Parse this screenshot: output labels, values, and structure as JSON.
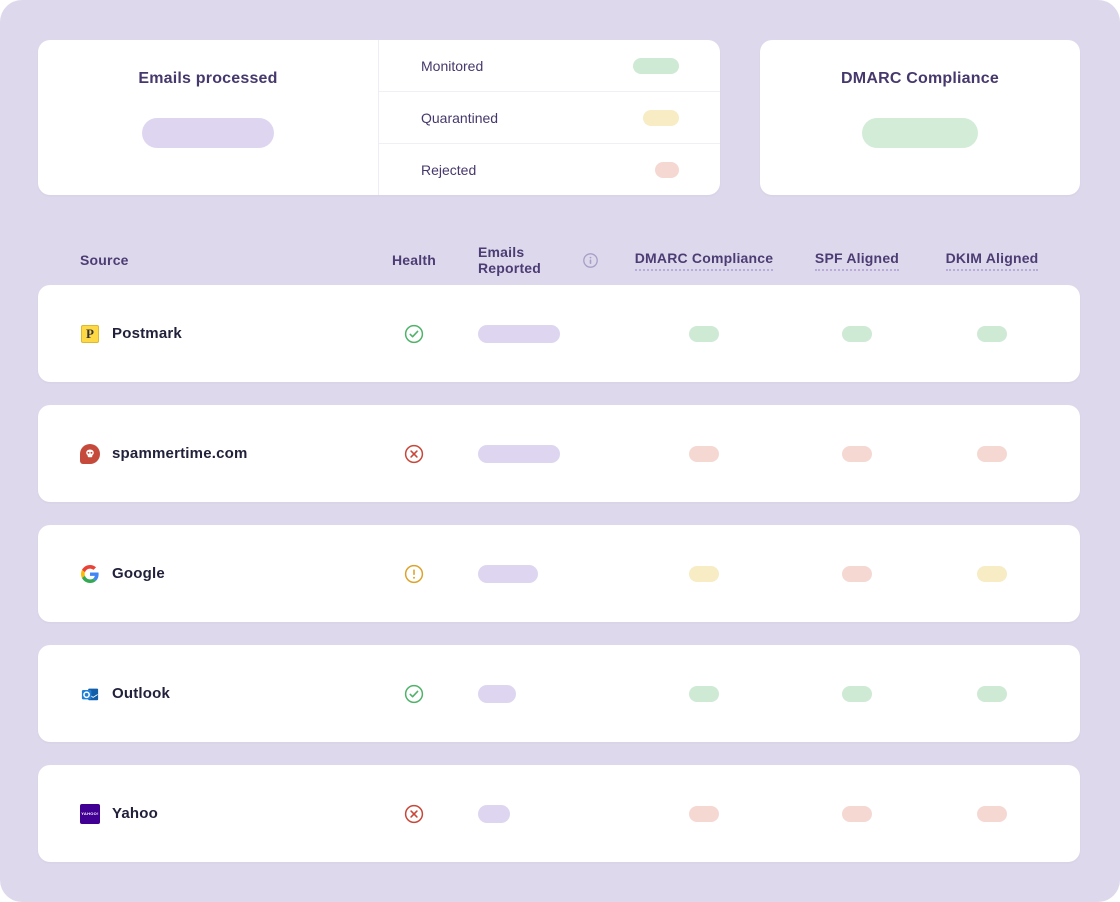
{
  "cards": {
    "emails_processed": {
      "title": "Emails processed",
      "value_pill": "reported"
    },
    "legend": {
      "items": [
        {
          "label": "Monitored",
          "status": "monitored",
          "pill_width": 46
        },
        {
          "label": "Quarantined",
          "status": "quarantined",
          "pill_width": 36
        },
        {
          "label": "Rejected",
          "status": "rejected",
          "pill_width": 24
        }
      ]
    },
    "dmarc_compliance": {
      "title": "DMARC Compliance",
      "value_pill": "compliance"
    }
  },
  "status_colors": {
    "monitored": "#cfead4",
    "quarantined": "#f8ecc5",
    "rejected": "#f5d8d2",
    "reported": "#ded6f0",
    "compliance": "#d3ecd8"
  },
  "health_colors": {
    "pass": "#50b36a",
    "warning": "#dca42d",
    "fail": "#c8473a"
  },
  "table": {
    "headers": [
      {
        "label": "Source"
      },
      {
        "label": "Health"
      },
      {
        "label": "Emails Reported",
        "info_icon": "info-icon"
      },
      {
        "label": "DMARC Compliance",
        "underlined": true
      },
      {
        "label": "SPF Aligned",
        "underlined": true
      },
      {
        "label": "DKIM Aligned",
        "underlined": true
      }
    ],
    "rows": [
      {
        "source": "Postmark",
        "icon": "postmark",
        "health": "pass",
        "reported_width": 82,
        "dmarc": "monitored",
        "spf": "monitored",
        "dkim": "monitored"
      },
      {
        "source": "spammertime.com",
        "icon": "spammertime",
        "health": "fail",
        "reported_width": 82,
        "dmarc": "rejected",
        "spf": "rejected",
        "dkim": "rejected"
      },
      {
        "source": "Google",
        "icon": "google",
        "health": "warning",
        "reported_width": 60,
        "dmarc": "quarantined",
        "spf": "rejected",
        "dkim": "quarantined"
      },
      {
        "source": "Outlook",
        "icon": "outlook",
        "health": "pass",
        "reported_width": 38,
        "dmarc": "monitored",
        "spf": "monitored",
        "dkim": "monitored"
      },
      {
        "source": "Yahoo",
        "icon": "yahoo",
        "health": "fail",
        "reported_width": 32,
        "dmarc": "rejected",
        "spf": "rejected",
        "dkim": "rejected"
      }
    ]
  }
}
